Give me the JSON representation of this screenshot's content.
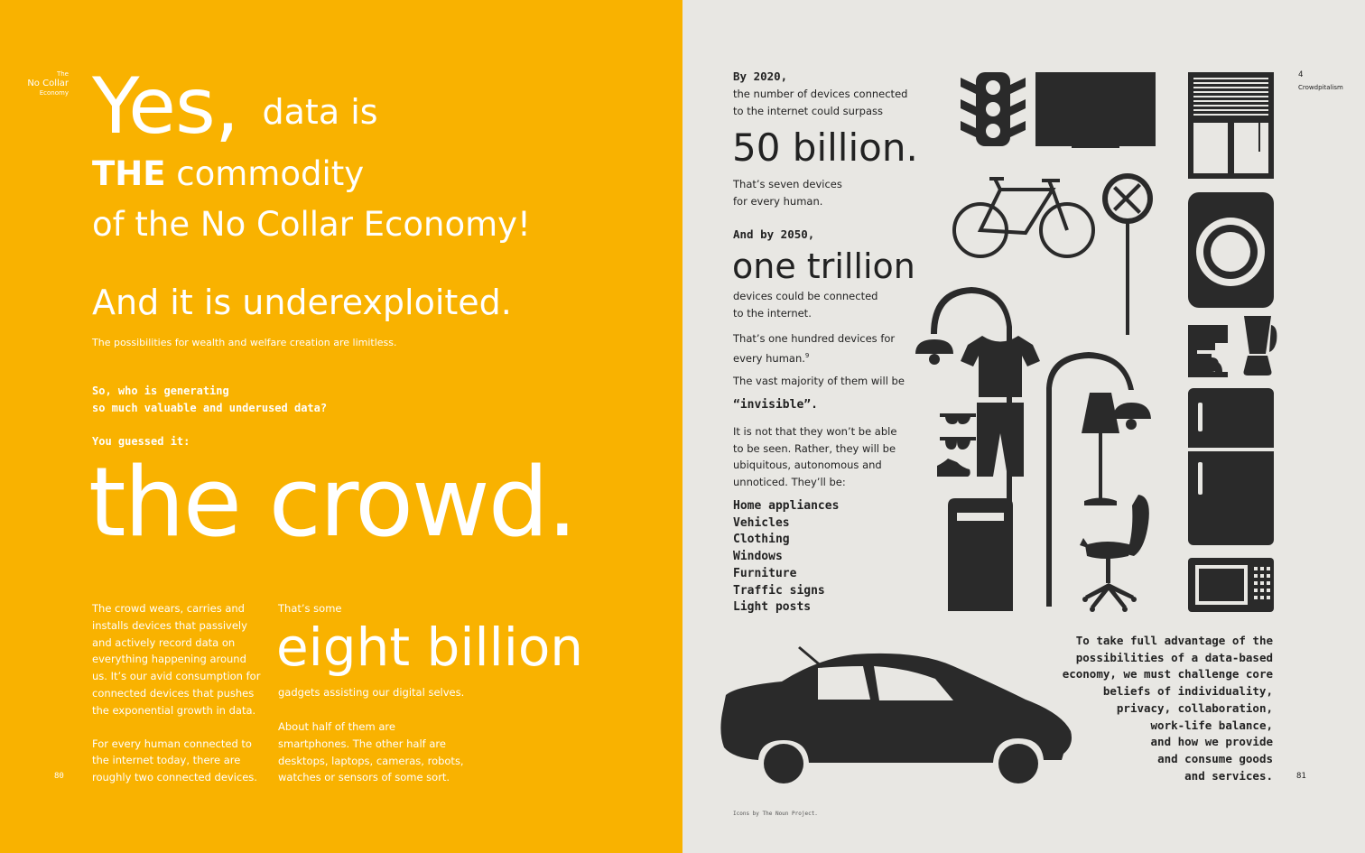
{
  "left_page": {
    "running_head": {
      "line1": "The",
      "line2": "No Collar",
      "line3": "Economy"
    },
    "headline": {
      "yes": "Yes,",
      "data_is": "data is",
      "the": "THE",
      "commodity": "commodity",
      "economy": "of the No Collar Economy!"
    },
    "underexploited": "And it is underexploited.",
    "wealth": "The possibilities for wealth and welfare creation are limitless.",
    "question_line1": "So, who is generating",
    "question_line2": "so much valuable and underused data?",
    "guessed": "You guessed it:",
    "crowd": "the crowd.",
    "col1": {
      "p1_l1": "The crowd wears, carries and",
      "p1_l2": "installs devices that passively",
      "p1_l3": "and actively record data on",
      "p1_l4": "everything happening around",
      "p1_l5": "us. It’s our avid consumption for",
      "p1_l6": "connected devices that pushes",
      "p1_l7": "the exponential growth in data.",
      "p2_l1": "For every human connected to",
      "p2_l2": "the internet today, there are",
      "p2_l3": "roughly two connected devices."
    },
    "col2": {
      "thats_some": "That’s some",
      "eight_billion": "eight billion",
      "gadgets": "gadgets assisting our digital selves.",
      "half_l1": "About half of them are",
      "half_l2": "smartphones. The other half are",
      "half_l3": "desktops, laptops, cameras, robots,",
      "half_l4": "watches or sensors of some sort."
    },
    "page_number": "80"
  },
  "right_page": {
    "by2020": "By 2020,",
    "devices_l1": "the number of devices connected",
    "devices_l2": "to the internet could surpass",
    "fifty_billion": "50 billion.",
    "seven_l1": "That’s seven devices",
    "seven_l2": "for every human.",
    "by2050": "And by 2050,",
    "one_trillion": "one trillion",
    "could_l1": "devices could be connected",
    "could_l2": "to the internet.",
    "hundred_l1": "That’s one hundred devices for",
    "hundred_l2": "every human.",
    "hundred_footnote": "9",
    "vast": "The vast majority of them will be",
    "invisible": "“invisible”.",
    "notseen_l1": "It is not that they won’t be able",
    "notseen_l2": "to be seen. Rather, they will be",
    "notseen_l3": "ubiquitous, autonomous and",
    "notseen_l4": "unnoticed. They’ll be:",
    "categories": [
      "Home appliances",
      "Vehicles",
      "Clothing",
      "Windows",
      "Furniture",
      "Traffic signs",
      "Light posts"
    ],
    "takeaway_l1": "To take full advantage of the",
    "takeaway_l2": "possibilities of a data-based",
    "takeaway_l3": "economy, we must challenge core",
    "takeaway_l4": "beliefs of individuality,",
    "takeaway_l5": "privacy, collaboration,",
    "takeaway_l6": "work-life balance,",
    "takeaway_l7": "and how we provide",
    "takeaway_l8": "and consume goods",
    "takeaway_l9": "and services.",
    "chapter_number": "4",
    "chapter_title": "Crowdpitalism",
    "credit": "Icons by The Noun Project.",
    "page_number": "81"
  },
  "colors": {
    "left_bg": "#F9B200",
    "right_bg": "#E8E7E3",
    "icon": "#2A2A2A"
  },
  "icons": [
    "traffic-light",
    "television",
    "window-blinds",
    "bicycle",
    "railroad-crossing-sign",
    "washing-machine",
    "street-lamp",
    "t-shirt",
    "sunglasses",
    "glasses",
    "shoe",
    "trousers",
    "floor-lamp",
    "coffee-maker",
    "blender",
    "refrigerator",
    "mailbox",
    "office-chair",
    "microwave",
    "car"
  ]
}
